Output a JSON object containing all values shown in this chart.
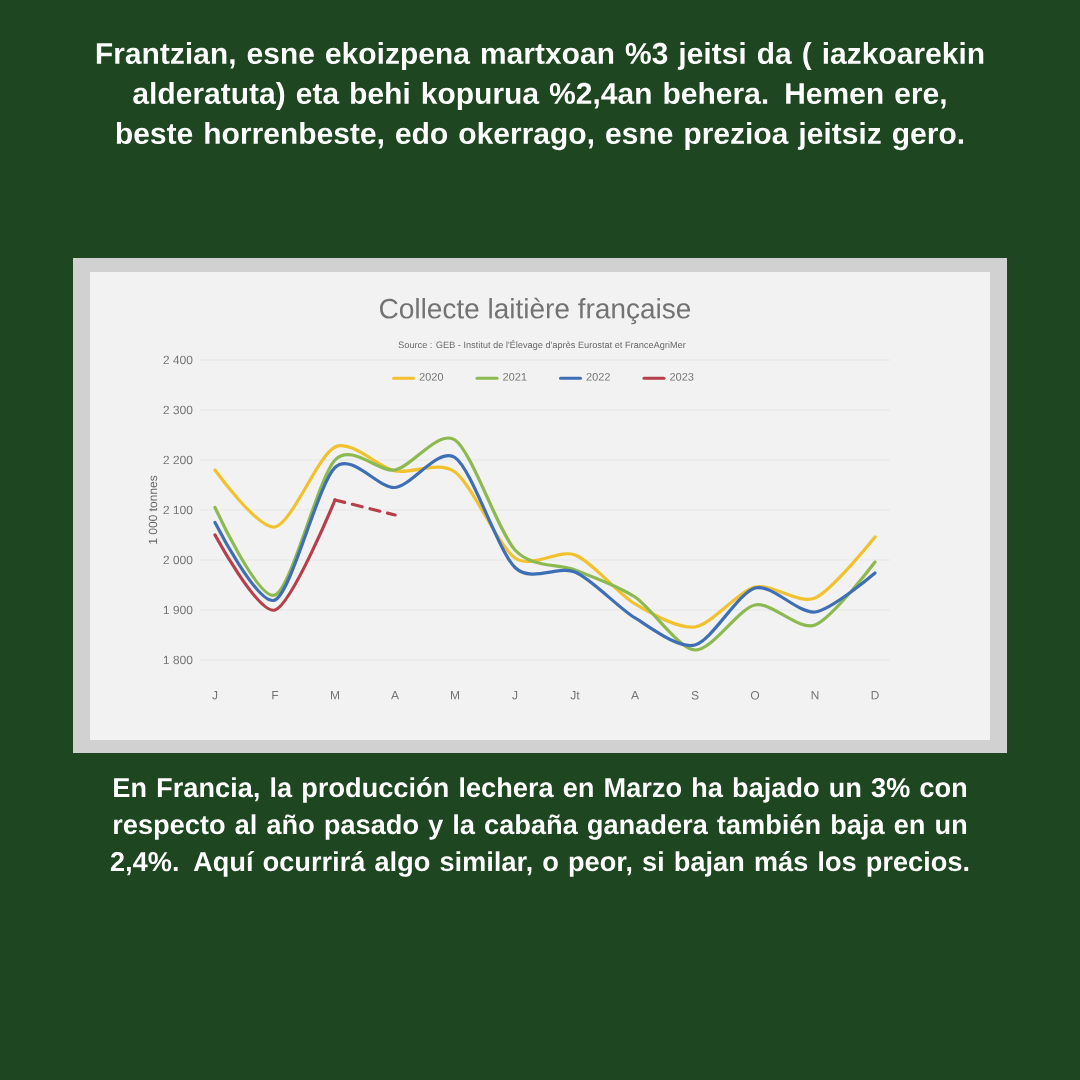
{
  "chart_data": {
    "type": "line",
    "title": "Frantzian, esne ekoizpena martxoan  %3 jeitsi da ( iazkoarekin alderatuta) eta behi kopurua %2,4an behera. Hemen ere, beste horrenbeste, edo okerrago, esne prezioa jeitsiz gero.",
    "subtitle": "Collecte laitière française",
    "annotations": [
      "Source : GEB - Institut de l'Élevage d'après Eurostat et FranceAgriMer",
      "En Francia, la producción lechera en Marzo ha bajado un 3% con respecto al año pasado y la cabaña ganadera también baja en un 2,4%. Aquí ocurrirá algo similar, o peor, si bajan más los precios."
    ],
    "ylabel": "1 000 tonnes",
    "categories": [
      "J",
      "F",
      "M",
      "A",
      "M",
      "J",
      "Jt",
      "A",
      "S",
      "O",
      "N",
      "D"
    ],
    "ylim": [
      1800,
      2400
    ],
    "yticks": [
      {
        "value": 1800,
        "label": "1 800"
      },
      {
        "value": 1900,
        "label": "1 900"
      },
      {
        "value": 2000,
        "label": "2 000"
      },
      {
        "value": 2100,
        "label": "2 100"
      },
      {
        "value": 2200,
        "label": "2 200"
      },
      {
        "value": 2300,
        "label": "2 300"
      },
      {
        "value": 2400,
        "label": "2 400"
      }
    ],
    "grid": "y",
    "legend": "top",
    "series": [
      {
        "name": "2020",
        "color": "#f2c12e",
        "values": [
          2180,
          2066,
          2226,
          2178,
          2176,
          2004,
          2010,
          1912,
          1866,
          1946,
          1924,
          2046
        ]
      },
      {
        "name": "2021",
        "color": "#8cba51",
        "values": [
          2105,
          1930,
          2200,
          2180,
          2240,
          2020,
          1980,
          1926,
          1820,
          1910,
          1870,
          1996
        ]
      },
      {
        "name": "2022",
        "color": "#3e6fb5",
        "values": [
          2075,
          1920,
          2185,
          2145,
          2205,
          1985,
          1976,
          1884,
          1830,
          1944,
          1896,
          1974
        ]
      },
      {
        "name": "2023",
        "color": "#b5404a",
        "values": [
          2050,
          1900,
          2120,
          null,
          null,
          null,
          null,
          null,
          null,
          null,
          null,
          null
        ]
      },
      {
        "color": "#b5404a",
        "line_style": "dashed",
        "values": [
          null,
          null,
          2120,
          2090,
          null,
          null,
          null,
          null,
          null,
          null,
          null,
          null
        ]
      }
    ]
  }
}
